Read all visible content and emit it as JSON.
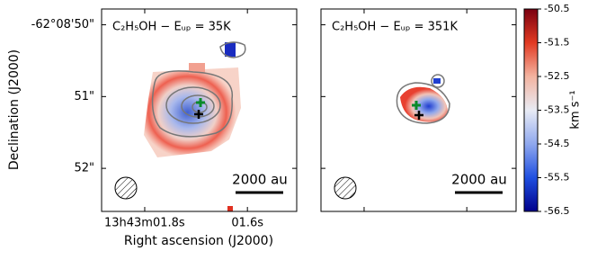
{
  "chart_data": {
    "type": "map",
    "panels": [
      {
        "title": "C₂H₅OH − Eᵤₚ = 35K",
        "scale_bar": "2000 au"
      },
      {
        "title": "C₂H₅OH − Eᵤₚ = 351K",
        "scale_bar": "2000 au"
      }
    ],
    "x_label": "Right ascension (J2000)",
    "y_label": "Declination (J2000)",
    "xlim": [
      1.884,
      1.504
    ],
    "xticks": [
      {
        "value": 1.8,
        "label": "13h43m01.8s"
      },
      {
        "value": 1.6,
        "label": "01.6s"
      }
    ],
    "ylim": [
      52.6,
      49.78
    ],
    "yticks": [
      {
        "value": 50,
        "label": "-62°08'50\""
      },
      {
        "value": 51,
        "label": "51\""
      },
      {
        "value": 52,
        "label": "52\""
      }
    ],
    "colorbar": {
      "label": "km s⁻¹",
      "lim": [
        -56.5,
        -50.5
      ],
      "ticks": [
        -50.5,
        -51.5,
        -52.5,
        -53.5,
        -54.5,
        -55.5,
        -56.5
      ],
      "colors": [
        "#00008b",
        "#1f4fe0",
        "#8fa8ee",
        "#e8ebf4",
        "#f3b3a0",
        "#e23a22",
        "#7a0010"
      ]
    }
  }
}
